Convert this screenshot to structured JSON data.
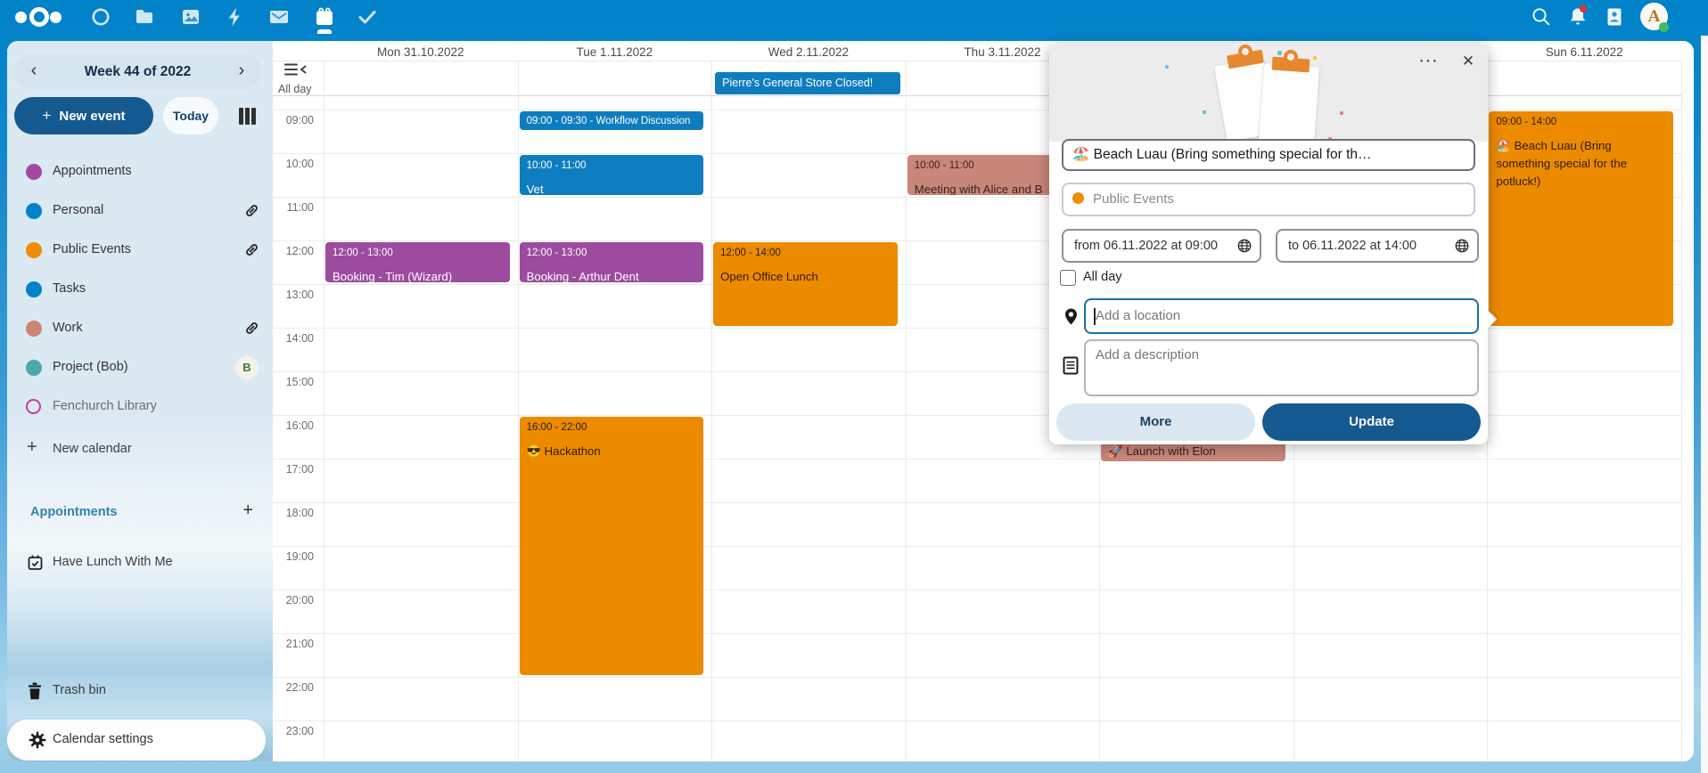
{
  "topbar": {
    "app_icons": [
      "nextcloud-logo",
      "dashboard",
      "files",
      "photos",
      "activity",
      "mail",
      "calendar",
      "tasks"
    ],
    "active_app": "calendar",
    "right_icons": [
      "search",
      "notifications",
      "contacts"
    ],
    "notifications_unread": true,
    "avatar_initial": "A"
  },
  "sidebar": {
    "prev_glyph": "‹",
    "next_glyph": "›",
    "plus_glyph": "+",
    "week_label": "Week 44 of 2022",
    "new_event_label": "New event",
    "today_label": "Today",
    "calendars": [
      {
        "name": "Appointments",
        "color": "#A349A3"
      },
      {
        "name": "Personal",
        "color": "#0082C9",
        "shared": true
      },
      {
        "name": "Public Events",
        "color": "#ED8E02",
        "shared": true
      },
      {
        "name": "Tasks",
        "color": "#0082C9"
      },
      {
        "name": "Work",
        "color": "#CC8475",
        "shared": true
      },
      {
        "name": "Project (Bob)",
        "color": "#4FA8A8",
        "badge": "B"
      },
      {
        "name": "Fenchurch Library",
        "color": "#C13DA4",
        "outline": true
      }
    ],
    "new_calendar_label": "New calendar",
    "appointments_heading": "Appointments",
    "appointment_items": [
      "Have Lunch With Me"
    ],
    "trash_label": "Trash bin",
    "settings_label": "Calendar settings"
  },
  "calendar": {
    "allday_label": "All day",
    "days": [
      {
        "col": 0,
        "label": "Mon 31.10.2022"
      },
      {
        "col": 1,
        "label": "Tue 1.11.2022"
      },
      {
        "col": 2,
        "label": "Wed 2.11.2022"
      },
      {
        "col": 3,
        "label": "Thu 3.11.2022"
      },
      {
        "col": 6,
        "label": "Sun 6.11.2022"
      }
    ],
    "hours": [
      "09:00",
      "10:00",
      "11:00",
      "12:00",
      "13:00",
      "14:00",
      "15:00",
      "16:00",
      "17:00",
      "18:00",
      "19:00",
      "20:00",
      "21:00",
      "22:00",
      "23:00"
    ],
    "allday_events": [
      {
        "col": 2,
        "title": "Pierre's General Store Closed!",
        "color": "blue"
      }
    ],
    "events": [
      {
        "col": 0,
        "start": 12,
        "end": 13,
        "time": "12:00 - 13:00",
        "title": "Booking - Tim (Wizard)",
        "color": "purple"
      },
      {
        "col": 1,
        "start": 9,
        "end": 9.5,
        "time": "09:00 - 09:30",
        "title": "Workflow Discussion",
        "color": "blue",
        "inline": true
      },
      {
        "col": 1,
        "start": 10,
        "end": 11,
        "time": "10:00 - 11:00",
        "title": "Vet",
        "color": "blue"
      },
      {
        "col": 1,
        "start": 12,
        "end": 13,
        "time": "12:00 - 13:00",
        "title": "Booking - Arthur Dent",
        "color": "purple"
      },
      {
        "col": 1,
        "start": 16,
        "end": 22,
        "time": "16:00 - 22:00",
        "title": "😎 Hackathon",
        "color": "orange"
      },
      {
        "col": 2,
        "start": 12,
        "end": 14,
        "time": "12:00 - 14:00",
        "title": "Open Office Lunch",
        "color": "orange"
      },
      {
        "col": 3,
        "start": 10,
        "end": 11,
        "time": "10:00 - 11:00",
        "title": "Meeting with Alice and B",
        "color": "salmon"
      },
      {
        "col": 4,
        "start": 16,
        "end": 17.1,
        "time": "",
        "title": "🚀 Launch with Elon",
        "color": "salmon"
      },
      {
        "col": 6,
        "start": 9,
        "end": 14,
        "time": "09:00 - 14:00",
        "title": "🏖️ Beach Luau (Bring something special for the potluck!)",
        "color": "orange"
      }
    ]
  },
  "popup": {
    "more_glyph": "⋯",
    "close_glyph": "✕",
    "title_value": "🏖️ Beach Luau (Bring something special for th…",
    "category_label": "Public Events",
    "category_color": "#ED8E02",
    "from_value": "from 06.11.2022 at 09:00",
    "to_value": "to 06.11.2022 at 14:00",
    "allday_label": "All day",
    "allday_checked": false,
    "location_placeholder": "Add a location",
    "description_placeholder": "Add a description",
    "more_label": "More",
    "update_label": "Update"
  },
  "colors": {
    "primary": "#0082C9",
    "button": "#14598F",
    "event_blue": "#0E7DC0",
    "event_purple": "#9C4B9E",
    "event_orange": "#EC8A00",
    "event_salmon": "#C9877B"
  }
}
